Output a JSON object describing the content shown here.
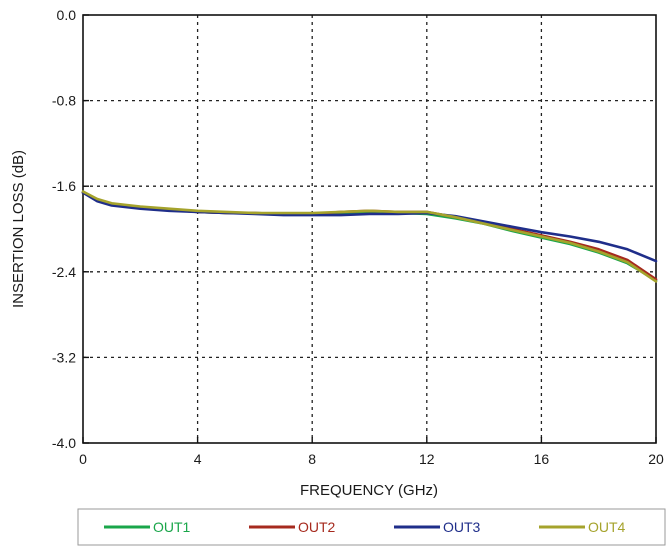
{
  "chart_data": {
    "type": "line",
    "xlabel": "FREQUENCY (GHz)",
    "ylabel": "INSERTION LOSS (dB)",
    "xlim": [
      0,
      20
    ],
    "ylim": [
      -4.0,
      0.0
    ],
    "x_ticks": [
      0,
      4,
      8,
      12,
      16,
      20
    ],
    "y_ticks": [
      0.0,
      -0.8,
      -1.6,
      -2.4,
      -3.2,
      -4.0
    ],
    "x_tick_labels": [
      "0",
      "4",
      "8",
      "12",
      "16",
      "20"
    ],
    "y_tick_labels": [
      "0.0",
      "-0.8",
      "-1.6",
      "-2.4",
      "-3.2",
      "-4.0"
    ],
    "grid": true,
    "legend_position": "bottom",
    "x": [
      0,
      0.5,
      1,
      2,
      3,
      4,
      5,
      6,
      7,
      8,
      9,
      10,
      11,
      12,
      13,
      14,
      15,
      16,
      17,
      18,
      19,
      20
    ],
    "series": [
      {
        "name": "OUT1",
        "color": "#1aa64a",
        "values": [
          -1.66,
          -1.73,
          -1.77,
          -1.8,
          -1.82,
          -1.84,
          -1.85,
          -1.85,
          -1.86,
          -1.86,
          -1.85,
          -1.84,
          -1.85,
          -1.86,
          -1.9,
          -1.95,
          -2.02,
          -2.08,
          -2.14,
          -2.22,
          -2.32,
          -2.48
        ]
      },
      {
        "name": "OUT2",
        "color": "#a62a1e",
        "values": [
          -1.66,
          -1.73,
          -1.77,
          -1.8,
          -1.82,
          -1.84,
          -1.85,
          -1.85,
          -1.86,
          -1.86,
          -1.84,
          -1.83,
          -1.84,
          -1.84,
          -1.89,
          -1.94,
          -2.0,
          -2.06,
          -2.12,
          -2.19,
          -2.29,
          -2.47
        ]
      },
      {
        "name": "OUT3",
        "color": "#1f2e8a",
        "values": [
          -1.66,
          -1.74,
          -1.78,
          -1.81,
          -1.83,
          -1.84,
          -1.85,
          -1.86,
          -1.87,
          -1.87,
          -1.87,
          -1.86,
          -1.86,
          -1.85,
          -1.88,
          -1.93,
          -1.98,
          -2.03,
          -2.07,
          -2.12,
          -2.19,
          -2.3
        ]
      },
      {
        "name": "OUT4",
        "color": "#a5a32c",
        "values": [
          -1.65,
          -1.72,
          -1.76,
          -1.79,
          -1.81,
          -1.83,
          -1.84,
          -1.85,
          -1.85,
          -1.85,
          -1.84,
          -1.83,
          -1.84,
          -1.84,
          -1.89,
          -1.95,
          -2.01,
          -2.07,
          -2.13,
          -2.21,
          -2.31,
          -2.49
        ]
      }
    ]
  }
}
